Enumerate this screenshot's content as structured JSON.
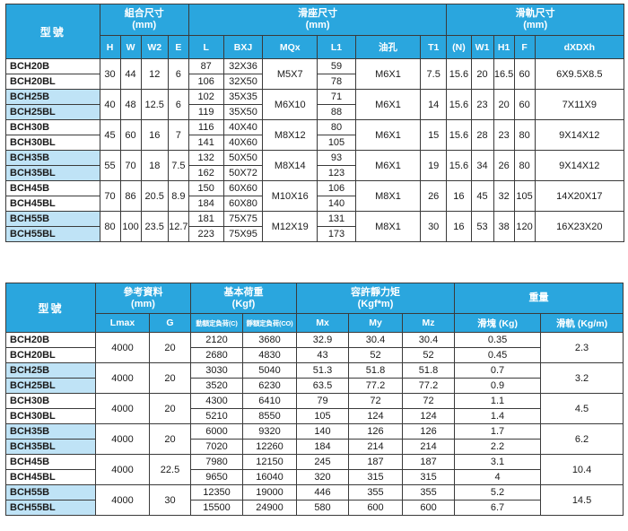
{
  "table1": {
    "headers": {
      "model": "型號",
      "assembly": {
        "title": "組合尺寸",
        "unit": "(mm)"
      },
      "slider": {
        "title": "滑座尺寸",
        "unit": "(mm)"
      },
      "rail": {
        "title": "滑軌尺寸",
        "unit": "(mm)"
      },
      "cols": [
        "H",
        "W",
        "W2",
        "E",
        "L",
        "BXJ",
        "MQx",
        "L1",
        "油孔",
        "T1",
        "(N)",
        "W1",
        "H1",
        "F",
        "dXDXh"
      ]
    },
    "groups": [
      {
        "models": [
          "BCH20B",
          "BCH20BL"
        ],
        "H": "30",
        "W": "44",
        "W2": "12",
        "E": "6",
        "L": [
          "87",
          "106"
        ],
        "BXJ": [
          "32X36",
          "32X50"
        ],
        "MQ": "M5X7",
        "L1": [
          "59",
          "78"
        ],
        "oil": "M6X1",
        "T1": "7.5",
        "N": "15.6",
        "W1": "20",
        "H1": "16.5",
        "F": "60",
        "dxdxh": "6X9.5X8.5"
      },
      {
        "models": [
          "BCH25B",
          "BCH25BL"
        ],
        "H": "40",
        "W": "48",
        "W2": "12.5",
        "E": "6",
        "L": [
          "102",
          "119"
        ],
        "BXJ": [
          "35X35",
          "35X50"
        ],
        "MQ": "M6X10",
        "L1": [
          "71",
          "88"
        ],
        "oil": "M6X1",
        "T1": "14",
        "N": "15.6",
        "W1": "23",
        "H1": "20",
        "F": "60",
        "dxdxh": "7X11X9"
      },
      {
        "models": [
          "BCH30B",
          "BCH30BL"
        ],
        "H": "45",
        "W": "60",
        "W2": "16",
        "E": "7",
        "L": [
          "116",
          "141"
        ],
        "BXJ": [
          "40X40",
          "40X60"
        ],
        "MQ": "M8X12",
        "L1": [
          "80",
          "105"
        ],
        "oil": "M6X1",
        "T1": "15",
        "N": "15.6",
        "W1": "28",
        "H1": "23",
        "F": "80",
        "dxdxh": "9X14X12"
      },
      {
        "models": [
          "BCH35B",
          "BCH35BL"
        ],
        "H": "55",
        "W": "70",
        "W2": "18",
        "E": "7.5",
        "L": [
          "132",
          "162"
        ],
        "BXJ": [
          "50X50",
          "50X72"
        ],
        "MQ": "M8X14",
        "L1": [
          "93",
          "123"
        ],
        "oil": "M6X1",
        "T1": "19",
        "N": "15.6",
        "W1": "34",
        "H1": "26",
        "F": "80",
        "dxdxh": "9X14X12"
      },
      {
        "models": [
          "BCH45B",
          "BCH45BL"
        ],
        "H": "70",
        "W": "86",
        "W2": "20.5",
        "E": "8.9",
        "L": [
          "150",
          "184"
        ],
        "BXJ": [
          "60X60",
          "60X80"
        ],
        "MQ": "M10X16",
        "L1": [
          "106",
          "140"
        ],
        "oil": "M8X1",
        "T1": "26",
        "N": "16",
        "W1": "45",
        "H1": "32",
        "F": "105",
        "dxdxh": "14X20X17"
      },
      {
        "models": [
          "BCH55B",
          "BCH55BL"
        ],
        "H": "80",
        "W": "100",
        "W2": "23.5",
        "E": "12.7",
        "L": [
          "181",
          "223"
        ],
        "BXJ": [
          "75X75",
          "75X95"
        ],
        "MQ": "M12X19",
        "L1": [
          "131",
          "173"
        ],
        "oil": "M8X1",
        "T1": "30",
        "N": "16",
        "W1": "53",
        "H1": "38",
        "F": "120",
        "dxdxh": "16X23X20"
      }
    ]
  },
  "table2": {
    "headers": {
      "model": "型號",
      "ref": {
        "title": "參考資料",
        "unit": "(mm)"
      },
      "load": {
        "title": "基本荷重",
        "unit": "(Kgf)"
      },
      "moment": {
        "title": "容許靜力矩",
        "unit": "(Kgf*m)"
      },
      "weight": {
        "title": "重量"
      },
      "cols": {
        "lmax": "Lmax",
        "G": "G",
        "dynamic": "動額定負荷(C)",
        "static": "靜額定負荷(CO)",
        "mx": "Mx",
        "my": "My",
        "mz": "Mz",
        "block": "滑塊 (Kg)",
        "rail": "滑軌 (Kg/m)"
      }
    },
    "groups": [
      {
        "models": [
          "BCH20B",
          "BCH20BL"
        ],
        "lmax": "4000",
        "G": "20",
        "C": [
          "2120",
          "2680"
        ],
        "CO": [
          "3680",
          "4830"
        ],
        "Mx": [
          "32.9",
          "43"
        ],
        "My": [
          "30.4",
          "52"
        ],
        "Mz": [
          "30.4",
          "52"
        ],
        "block": [
          "0.35",
          "0.45"
        ],
        "rail": "2.3"
      },
      {
        "models": [
          "BCH25B",
          "BCH25BL"
        ],
        "lmax": "4000",
        "G": "20",
        "C": [
          "3030",
          "3520"
        ],
        "CO": [
          "5040",
          "6230"
        ],
        "Mx": [
          "51.3",
          "63.5"
        ],
        "My": [
          "51.8",
          "77.2"
        ],
        "Mz": [
          "51.8",
          "77.2"
        ],
        "block": [
          "0.7",
          "0.9"
        ],
        "rail": "3.2"
      },
      {
        "models": [
          "BCH30B",
          "BCH30BL"
        ],
        "lmax": "4000",
        "G": "20",
        "C": [
          "4300",
          "5210"
        ],
        "CO": [
          "6410",
          "8550"
        ],
        "Mx": [
          "79",
          "105"
        ],
        "My": [
          "72",
          "124"
        ],
        "Mz": [
          "72",
          "124"
        ],
        "block": [
          "1.1",
          "1.4"
        ],
        "rail": "4.5"
      },
      {
        "models": [
          "BCH35B",
          "BCH35BL"
        ],
        "lmax": "4000",
        "G": "20",
        "C": [
          "6000",
          "7020"
        ],
        "CO": [
          "9320",
          "12260"
        ],
        "Mx": [
          "140",
          "184"
        ],
        "My": [
          "126",
          "214"
        ],
        "Mz": [
          "126",
          "214"
        ],
        "block": [
          "1.7",
          "2.2"
        ],
        "rail": "6.2"
      },
      {
        "models": [
          "BCH45B",
          "BCH45BL"
        ],
        "lmax": "4000",
        "G": "22.5",
        "C": [
          "7980",
          "9650"
        ],
        "CO": [
          "12150",
          "16040"
        ],
        "Mx": [
          "245",
          "320"
        ],
        "My": [
          "187",
          "315"
        ],
        "Mz": [
          "187",
          "315"
        ],
        "block": [
          "3.1",
          "4"
        ],
        "rail": "10.4"
      },
      {
        "models": [
          "BCH55B",
          "BCH55BL"
        ],
        "lmax": "4000",
        "G": "30",
        "C": [
          "12350",
          "15500"
        ],
        "CO": [
          "19000",
          "24900"
        ],
        "Mx": [
          "446",
          "580"
        ],
        "My": [
          "355",
          "600"
        ],
        "Mz": [
          "355",
          "600"
        ],
        "block": [
          "5.2",
          "6.7"
        ],
        "rail": "14.5"
      }
    ]
  }
}
